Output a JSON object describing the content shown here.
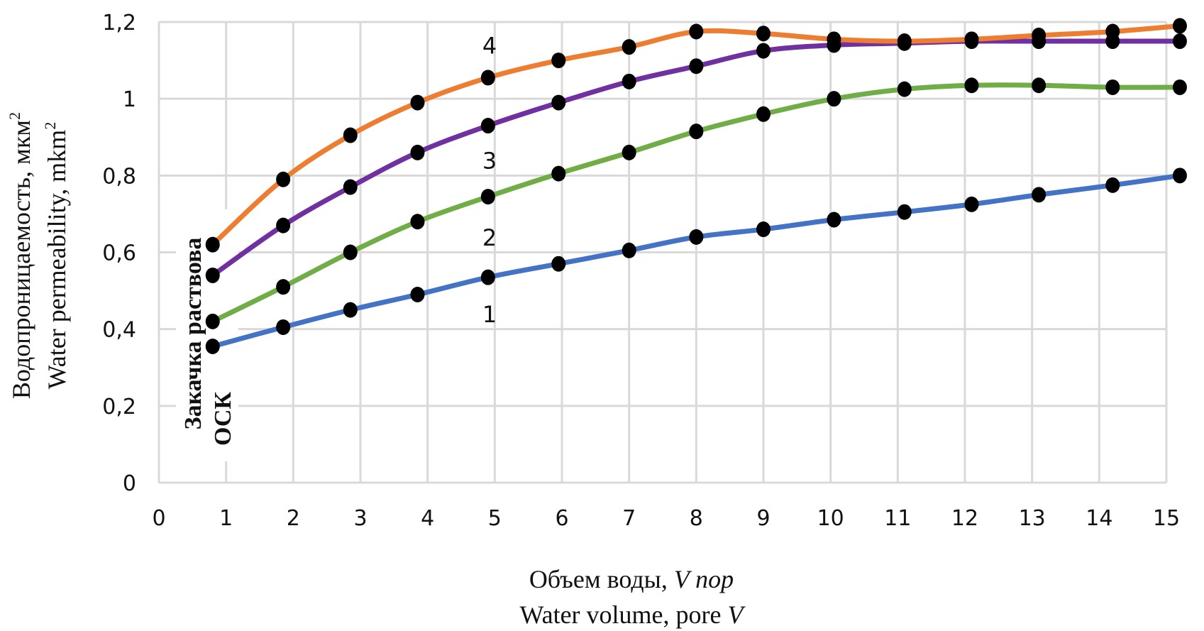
{
  "chart_data": {
    "type": "line",
    "title": "",
    "xlabel_ru": "Объем воды,",
    "xlabel_ru_italic": "V пор",
    "xlabel_en": "Water volume, pore",
    "xlabel_en_italic": "V",
    "ylabel_ru": "Водопроницаемость, мкм",
    "ylabel_en": "Water permeability, mkm",
    "ylabel_sup": "2",
    "xlim": [
      0,
      15
    ],
    "ylim": [
      0,
      1.2
    ],
    "xticks": [
      "0",
      "1",
      "2",
      "3",
      "4",
      "5",
      "6",
      "7",
      "8",
      "9",
      "10",
      "11",
      "12",
      "13",
      "14",
      "15"
    ],
    "yticks": [
      "0",
      "0,2",
      "0,4",
      "0,6",
      "0,8",
      "1",
      "1,2"
    ],
    "ytick_values": [
      0,
      0.2,
      0.4,
      0.6,
      0.8,
      1.0,
      1.2
    ],
    "grid": true,
    "annotation_line1": "Закачка раствова",
    "annotation_line2": "ОСК",
    "x": [
      0.8,
      1.85,
      2.85,
      3.85,
      4.9,
      5.95,
      7,
      8,
      9,
      10.05,
      11.1,
      12.1,
      13.1,
      14.2,
      15.2
    ],
    "series": [
      {
        "label": "1",
        "color": "#4472c4",
        "values": [
          0.355,
          0.405,
          0.45,
          0.49,
          0.535,
          0.57,
          0.605,
          0.64,
          0.66,
          0.685,
          0.705,
          0.725,
          0.75,
          0.775,
          0.8
        ],
        "label_at": [
          4.5,
          0.44
        ]
      },
      {
        "label": "2",
        "color": "#70ad47",
        "values": [
          0.42,
          0.51,
          0.6,
          0.68,
          0.745,
          0.805,
          0.86,
          0.915,
          0.96,
          1.0,
          1.025,
          1.035,
          1.035,
          1.03,
          1.03
        ],
        "label_at": [
          4.5,
          0.64
        ]
      },
      {
        "label": "3",
        "color": "#7030a0",
        "values": [
          0.54,
          0.67,
          0.77,
          0.86,
          0.93,
          0.99,
          1.045,
          1.085,
          1.125,
          1.14,
          1.145,
          1.15,
          1.15,
          1.15,
          1.15
        ],
        "label_at": [
          4.5,
          0.84
        ]
      },
      {
        "label": "4",
        "color": "#ed7d31",
        "values": [
          0.62,
          0.79,
          0.905,
          0.99,
          1.055,
          1.1,
          1.135,
          1.175,
          1.17,
          1.155,
          1.15,
          1.155,
          1.165,
          1.175,
          1.19
        ],
        "label_at": [
          4.5,
          1.14
        ]
      }
    ],
    "marker_color": "#000000",
    "grid_color": "#d9d9d9"
  }
}
